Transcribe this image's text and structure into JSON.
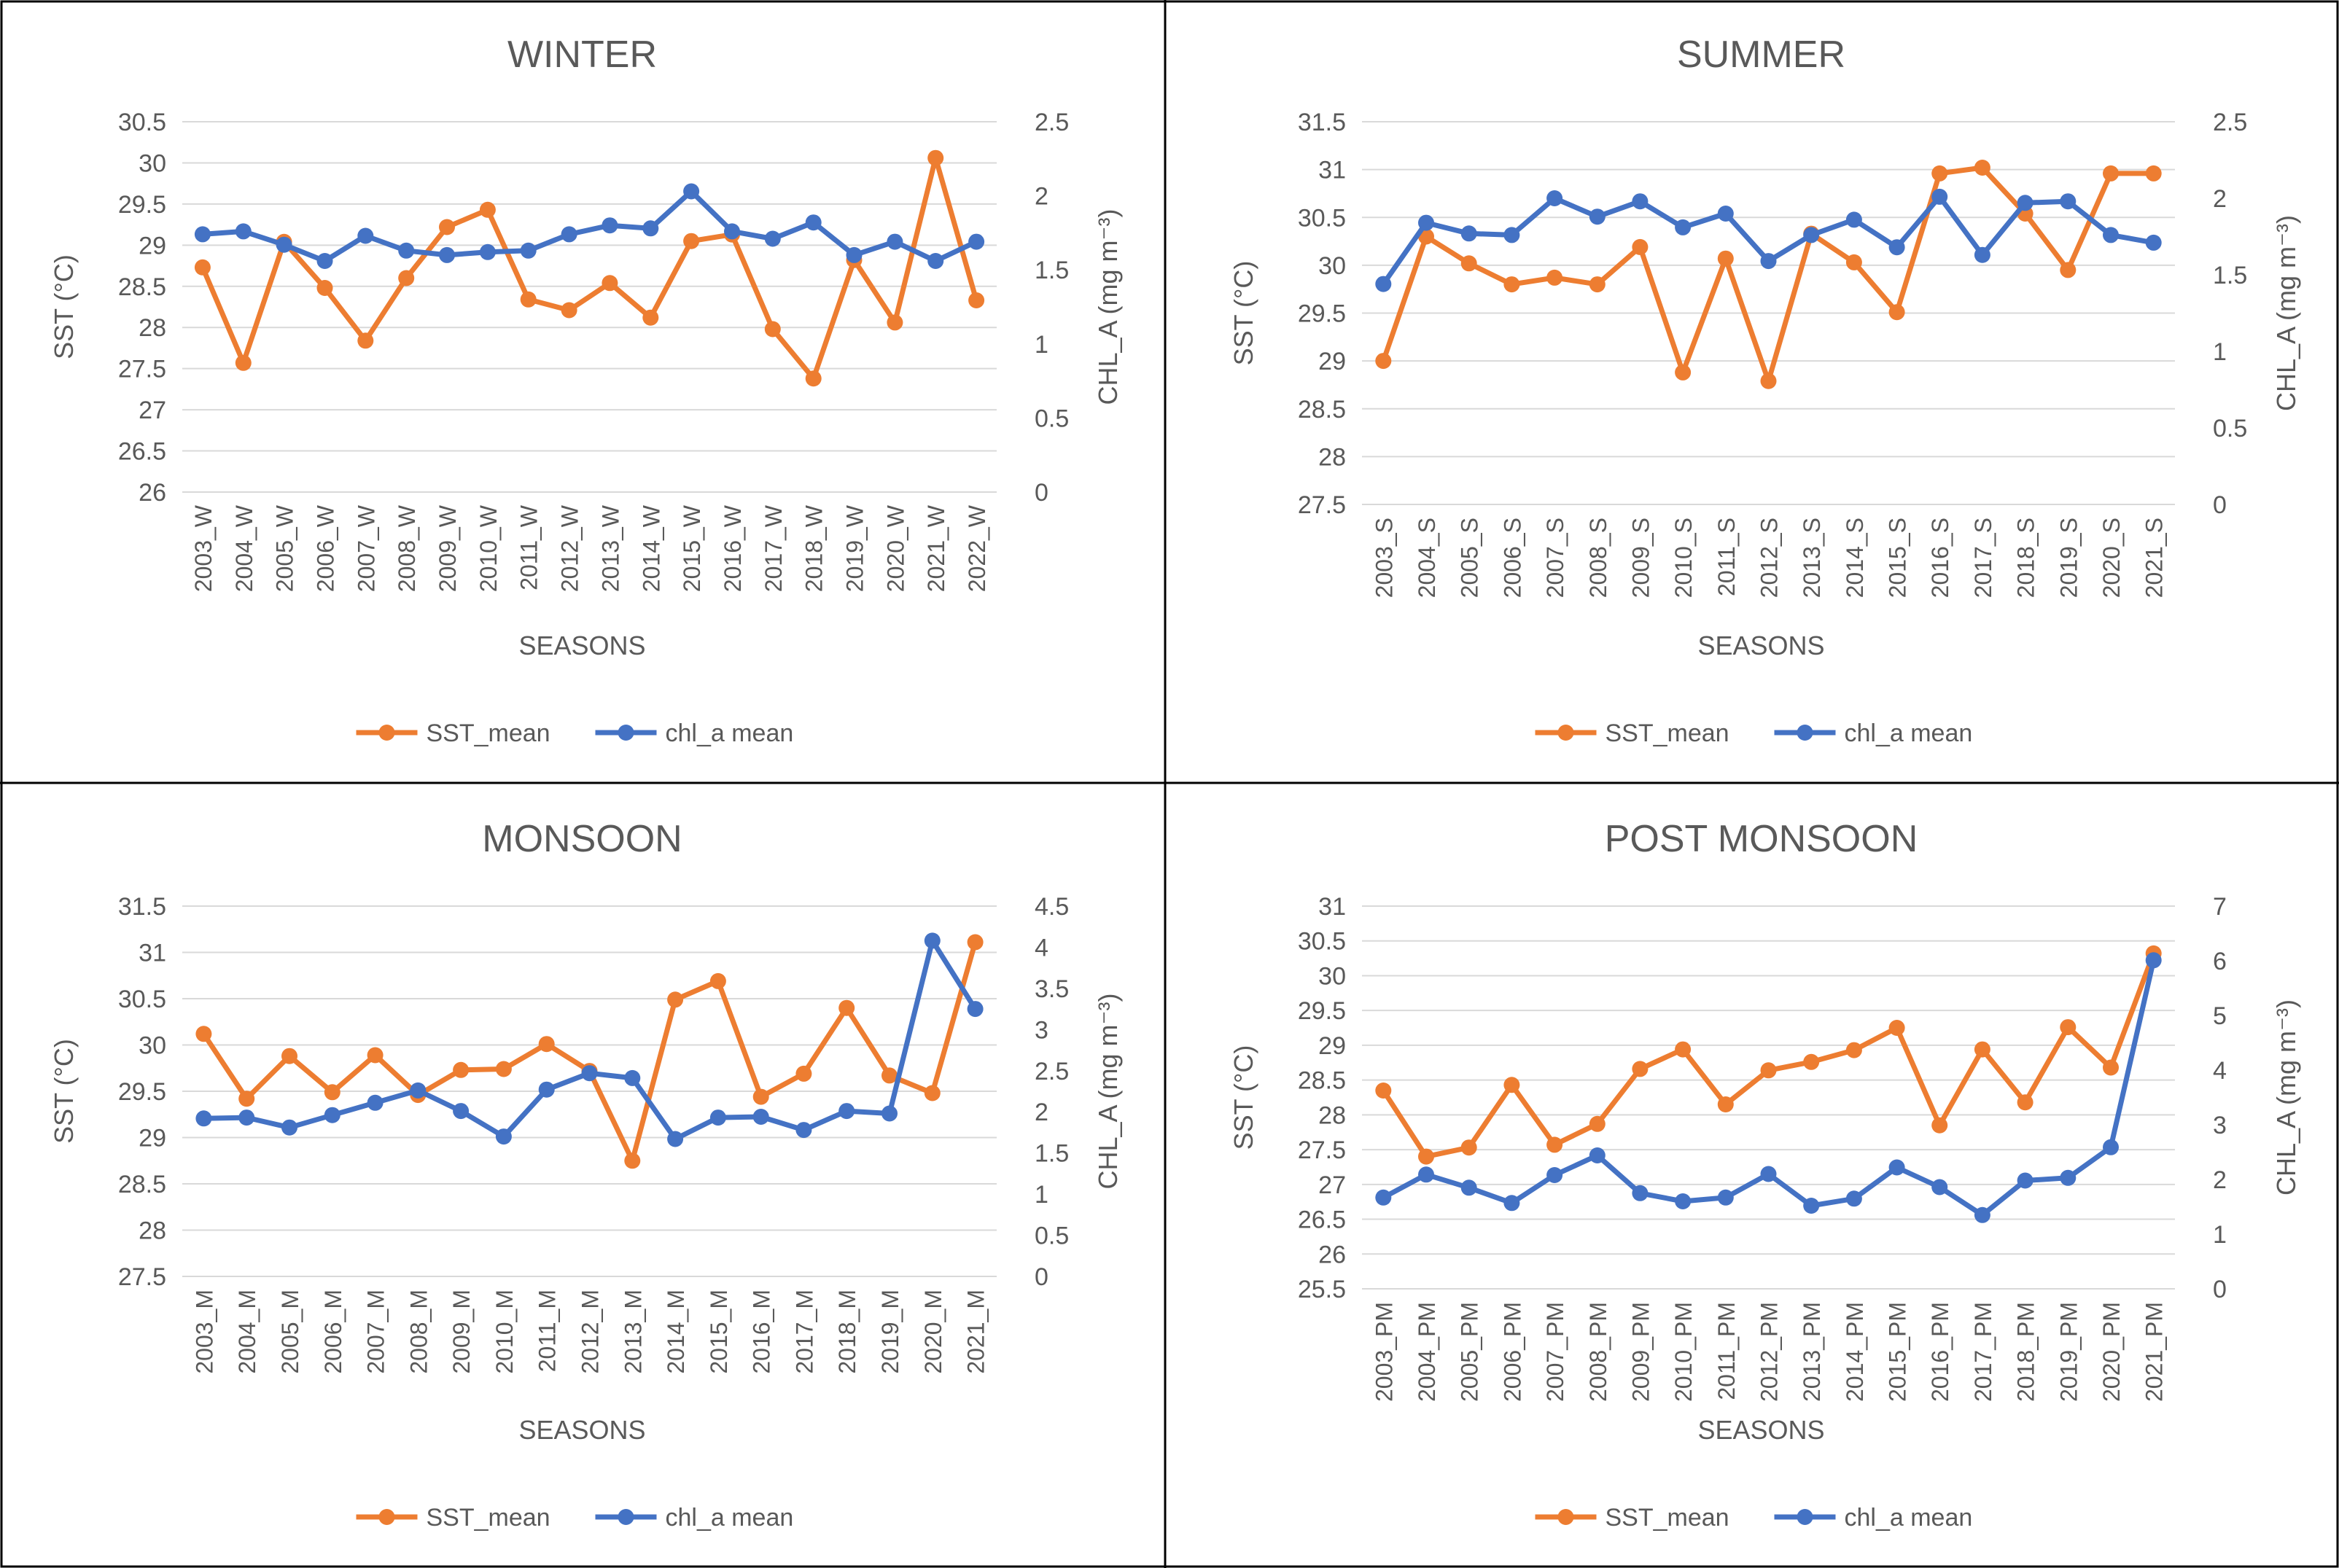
{
  "chart_data": [
    {
      "type": "line",
      "title": "WINTER",
      "xlabel": "SEASONS",
      "ylabel_left": "SST (°C)",
      "ylabel_right": "CHL_A (mg m⁻³)",
      "categories": [
        "2003_W",
        "2004_W",
        "2005_W",
        "2006_W",
        "2007_W",
        "2008_W",
        "2009_W",
        "2010_W",
        "2011_W",
        "2012_W",
        "2013_W",
        "2014_W",
        "2015_W",
        "2016_W",
        "2017_W",
        "2018_W",
        "2019_W",
        "2020_W",
        "2021_W",
        "2022_W"
      ],
      "left_axis": {
        "min": 26,
        "max": 30.5,
        "step": 0.5,
        "ticks": [
          "26",
          "26.5",
          "27",
          "27.5",
          "28",
          "28.5",
          "29",
          "29.5",
          "30",
          "30.5"
        ]
      },
      "right_axis": {
        "min": 0,
        "max": 2.5,
        "step": 0.5,
        "ticks": [
          "0",
          "0.5",
          "1",
          "1.5",
          "2",
          "2.5"
        ]
      },
      "series": [
        {
          "name": "SST_mean",
          "axis": "left",
          "color": "#ED7D31",
          "values": [
            28.73,
            27.57,
            29.04,
            28.48,
            27.84,
            28.6,
            29.22,
            29.43,
            28.34,
            28.21,
            28.54,
            28.12,
            29.05,
            29.13,
            27.98,
            27.38,
            28.82,
            28.06,
            30.06,
            28.33
          ]
        },
        {
          "name": "chl_a mean",
          "axis": "right",
          "color": "#4472C4",
          "values": [
            1.74,
            1.76,
            1.67,
            1.56,
            1.73,
            1.63,
            1.6,
            1.62,
            1.63,
            1.74,
            1.8,
            1.78,
            2.03,
            1.76,
            1.71,
            1.82,
            1.6,
            1.69,
            1.56,
            1.69
          ]
        }
      ],
      "legend": "bottom",
      "grid": true
    },
    {
      "type": "line",
      "title": "SUMMER",
      "xlabel": "SEASONS",
      "ylabel_left": "SST (°C)",
      "ylabel_right": "CHL_A (mg m⁻³)",
      "categories": [
        "2003_S",
        "2004_S",
        "2005_S",
        "2006_S",
        "2007_S",
        "2008_S",
        "2009_S",
        "2010_S",
        "2011_S",
        "2012_S",
        "2013_S",
        "2014_S",
        "2015_S",
        "2016_S",
        "2017_S",
        "2018_S",
        "2019_S",
        "2020_S",
        "2021_S"
      ],
      "left_axis": {
        "min": 27.5,
        "max": 31.5,
        "step": 0.5,
        "ticks": [
          "27.5",
          "28",
          "28.5",
          "29",
          "29.5",
          "30",
          "30.5",
          "31",
          "31.5"
        ]
      },
      "right_axis": {
        "min": 0,
        "max": 2.5,
        "step": 0.5,
        "ticks": [
          "0",
          "0.5",
          "1",
          "1.5",
          "2",
          "2.5"
        ]
      },
      "series": [
        {
          "name": "SST_mean",
          "axis": "left",
          "color": "#ED7D31",
          "values": [
            29.0,
            30.3,
            30.02,
            29.8,
            29.87,
            29.8,
            30.19,
            28.88,
            30.07,
            28.79,
            30.33,
            30.03,
            29.51,
            30.96,
            31.02,
            30.54,
            29.95,
            30.96,
            30.96
          ]
        },
        {
          "name": "chl_a mean",
          "axis": "right",
          "color": "#4472C4",
          "values": [
            1.44,
            1.84,
            1.77,
            1.76,
            2.0,
            1.88,
            1.98,
            1.81,
            1.9,
            1.59,
            1.76,
            1.86,
            1.68,
            2.01,
            1.63,
            1.97,
            1.98,
            1.76,
            1.71
          ]
        }
      ],
      "legend": "bottom",
      "grid": true
    },
    {
      "type": "line",
      "title": "MONSOON",
      "xlabel": "SEASONS",
      "ylabel_left": "SST (°C)",
      "ylabel_right": "CHL_A (mg m⁻³)",
      "categories": [
        "2003_M",
        "2004_M",
        "2005_M",
        "2006_M",
        "2007_M",
        "2008_M",
        "2009_M",
        "2010_M",
        "2011_M",
        "2012_M",
        "2013_M",
        "2014_M",
        "2015_M",
        "2016_M",
        "2017_M",
        "2018_M",
        "2019_M",
        "2020_M",
        "2021_M"
      ],
      "left_axis": {
        "min": 27.5,
        "max": 31.5,
        "step": 0.5,
        "ticks": [
          "27.5",
          "28",
          "28.5",
          "29",
          "29.5",
          "30",
          "30.5",
          "31",
          "31.5"
        ]
      },
      "right_axis": {
        "min": 0,
        "max": 4.5,
        "step": 0.5,
        "ticks": [
          "0",
          "0.5",
          "1",
          "1.5",
          "2",
          "2.5",
          "3",
          "3.5",
          "4",
          "4.5"
        ]
      },
      "series": [
        {
          "name": "SST_mean",
          "axis": "left",
          "color": "#ED7D31",
          "values": [
            30.12,
            29.42,
            29.88,
            29.49,
            29.89,
            29.46,
            29.73,
            29.74,
            30.01,
            29.72,
            28.75,
            30.49,
            30.69,
            29.44,
            29.69,
            30.4,
            29.67,
            29.48,
            31.11
          ]
        },
        {
          "name": "chl_a mean",
          "axis": "right",
          "color": "#4472C4",
          "values": [
            1.92,
            1.93,
            1.81,
            1.96,
            2.11,
            2.26,
            2.01,
            1.7,
            2.27,
            2.47,
            2.41,
            1.67,
            1.93,
            1.94,
            1.78,
            2.01,
            1.98,
            4.08,
            3.25
          ]
        }
      ],
      "legend": "bottom",
      "grid": true
    },
    {
      "type": "line",
      "title": "POST MONSOON",
      "xlabel": "SEASONS",
      "ylabel_left": "SST (°C)",
      "ylabel_right": "CHL_A (mg m⁻³)",
      "categories": [
        "2003_PM",
        "2004_PM",
        "2005_PM",
        "2006_PM",
        "2007_PM",
        "2008_PM",
        "2009_PM",
        "2010_PM",
        "2011_PM",
        "2012_PM",
        "2013_PM",
        "2014_PM",
        "2015_PM",
        "2016_PM",
        "2017_PM",
        "2018_PM",
        "2019_PM",
        "2020_PM",
        "2021_PM"
      ],
      "left_axis": {
        "min": 25.5,
        "max": 31,
        "step": 0.5,
        "ticks": [
          "25.5",
          "26",
          "26.5",
          "27",
          "27.5",
          "28",
          "28.5",
          "29",
          "29.5",
          "30",
          "30.5",
          "31"
        ]
      },
      "right_axis": {
        "min": 0,
        "max": 7,
        "step": 1,
        "ticks": [
          "0",
          "1",
          "2",
          "3",
          "4",
          "5",
          "6",
          "7"
        ]
      },
      "series": [
        {
          "name": "SST_mean",
          "axis": "left",
          "color": "#ED7D31",
          "values": [
            28.35,
            27.4,
            27.53,
            28.43,
            27.57,
            27.87,
            28.66,
            28.94,
            28.15,
            28.64,
            28.76,
            28.93,
            29.25,
            27.85,
            28.94,
            28.18,
            29.26,
            28.68,
            30.32
          ]
        },
        {
          "name": "chl_a mean",
          "axis": "right",
          "color": "#4472C4",
          "values": [
            1.67,
            2.09,
            1.85,
            1.57,
            2.08,
            2.44,
            1.75,
            1.6,
            1.67,
            2.1,
            1.52,
            1.65,
            2.22,
            1.86,
            1.35,
            1.98,
            2.03,
            2.59,
            6.01
          ]
        }
      ],
      "legend": "bottom",
      "grid": true
    }
  ]
}
